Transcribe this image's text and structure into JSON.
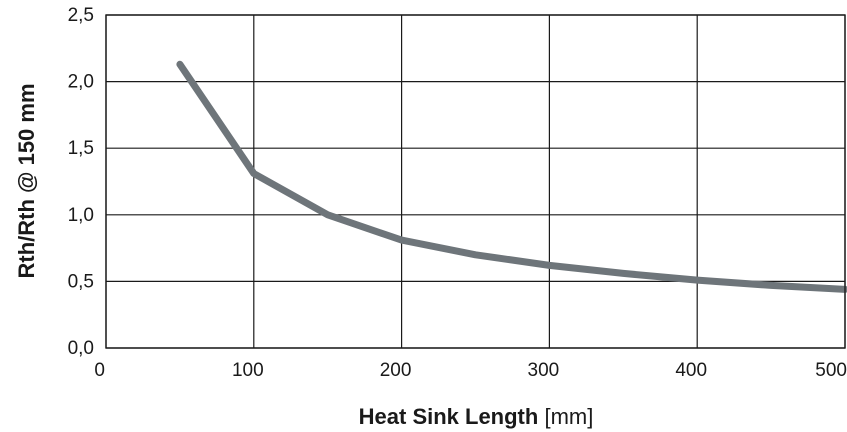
{
  "chart_data": {
    "type": "line",
    "title": "",
    "xlabel": "Heat Sink Length",
    "xlabel_unit": "[mm]",
    "ylabel": "Rth/Rth @ 150 mm",
    "xlim": [
      0,
      500
    ],
    "ylim": [
      0,
      2.5
    ],
    "x_ticks": [
      0,
      100,
      200,
      300,
      400,
      500
    ],
    "x_tick_labels": [
      "0",
      "100",
      "200",
      "300",
      "400",
      "500"
    ],
    "y_ticks": [
      0,
      0.5,
      1.0,
      1.5,
      2.0,
      2.5
    ],
    "y_tick_labels": [
      "0,0",
      "0,5",
      "1,0",
      "1,5",
      "2,0",
      "2,5"
    ],
    "grid": true,
    "legend": "none",
    "series": [
      {
        "color": "#6e757a",
        "x": [
          50,
          100,
          150,
          200,
          250,
          300,
          350,
          400,
          450,
          500
        ],
        "y": [
          2.13,
          1.31,
          1.0,
          0.81,
          0.7,
          0.62,
          0.56,
          0.51,
          0.47,
          0.44
        ]
      }
    ]
  }
}
